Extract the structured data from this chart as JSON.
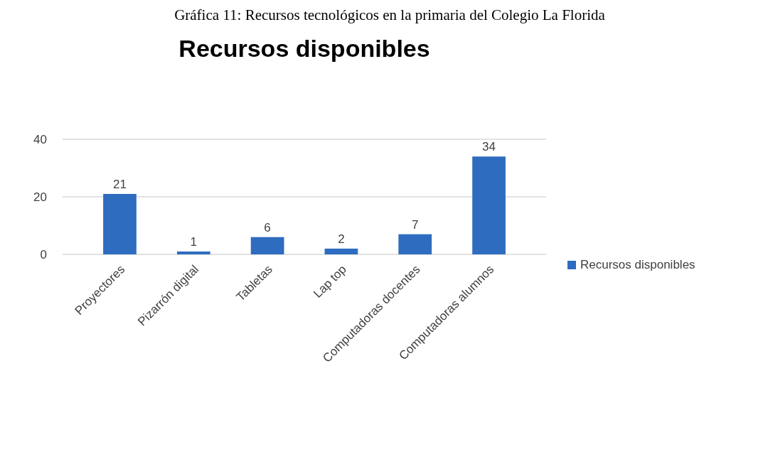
{
  "chart_data": {
    "type": "bar",
    "title": "Recursos disponibles",
    "annotations": [
      "Gráfica 11: Recursos tecnológicos en la primaria del Colegio La Florida"
    ],
    "categories": [
      "Proyectores",
      "Pizarrón digital",
      "Tabletas",
      "Lap top",
      "Computadoras docentes",
      "Computadoras alumnos"
    ],
    "series": [
      {
        "name": "Recursos disponibles",
        "color": "#2e6cbf",
        "values": [
          21,
          1,
          6,
          2,
          7,
          34
        ]
      }
    ],
    "ylim": [
      0,
      40
    ],
    "yticks": [
      0,
      20,
      40
    ],
    "grid": "y",
    "legend": "right",
    "data_labels": true
  }
}
